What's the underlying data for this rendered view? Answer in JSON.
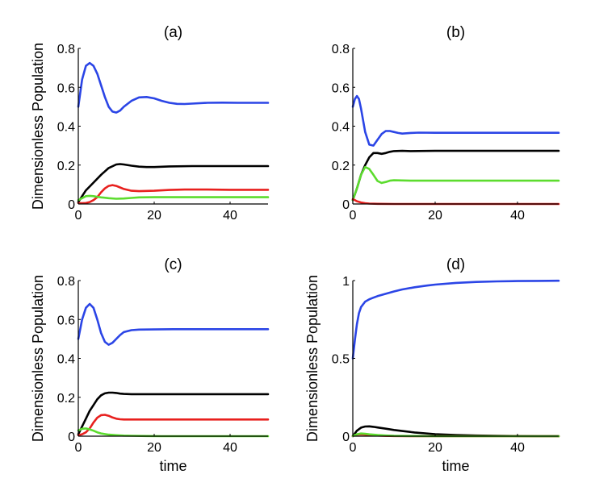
{
  "chart_data": [
    {
      "id": "a",
      "type": "line",
      "title": "(a)",
      "xlabel": "",
      "ylabel": "Dimensionless Population",
      "xlim": [
        0,
        50
      ],
      "ylim": [
        0,
        0.8
      ],
      "xticks": [
        "0",
        "20",
        "40"
      ],
      "yticks": [
        "0",
        "0.2",
        "0.4",
        "0.6",
        "0.8"
      ],
      "series": [
        {
          "name": "blue",
          "color": "#2b45e6",
          "x": [
            0,
            1,
            2,
            3,
            4,
            5,
            6,
            7,
            8,
            9,
            10,
            11,
            12,
            14,
            16,
            18,
            20,
            22,
            24,
            26,
            28,
            30,
            34,
            38,
            42,
            46,
            50
          ],
          "values": [
            0.5,
            0.64,
            0.71,
            0.725,
            0.71,
            0.67,
            0.61,
            0.55,
            0.5,
            0.475,
            0.47,
            0.48,
            0.5,
            0.53,
            0.548,
            0.55,
            0.543,
            0.53,
            0.52,
            0.515,
            0.514,
            0.516,
            0.52,
            0.521,
            0.52,
            0.52,
            0.52
          ]
        },
        {
          "name": "black",
          "color": "#000000",
          "x": [
            0,
            1,
            2,
            4,
            6,
            8,
            10,
            11,
            12,
            14,
            16,
            18,
            20,
            24,
            30,
            40,
            50
          ],
          "values": [
            0.01,
            0.04,
            0.07,
            0.11,
            0.15,
            0.185,
            0.203,
            0.205,
            0.203,
            0.197,
            0.192,
            0.19,
            0.19,
            0.193,
            0.195,
            0.195,
            0.195
          ]
        },
        {
          "name": "red",
          "color": "#e8201e",
          "x": [
            0,
            1,
            2,
            3,
            4,
            5,
            6,
            7,
            8,
            9,
            10,
            11,
            12,
            14,
            16,
            20,
            24,
            28,
            34,
            40,
            50
          ],
          "values": [
            0.005,
            0.004,
            0.005,
            0.01,
            0.02,
            0.035,
            0.06,
            0.08,
            0.093,
            0.097,
            0.093,
            0.085,
            0.077,
            0.068,
            0.066,
            0.068,
            0.072,
            0.074,
            0.074,
            0.073,
            0.073
          ]
        },
        {
          "name": "green",
          "color": "#5cdc2e",
          "x": [
            0,
            1,
            2,
            3,
            4,
            5,
            6,
            8,
            10,
            12,
            14,
            16,
            20,
            30,
            40,
            50
          ],
          "values": [
            0.02,
            0.03,
            0.04,
            0.042,
            0.04,
            0.037,
            0.034,
            0.03,
            0.027,
            0.028,
            0.031,
            0.034,
            0.035,
            0.035,
            0.035,
            0.035
          ]
        }
      ]
    },
    {
      "id": "b",
      "type": "line",
      "title": "(b)",
      "xlabel": "",
      "ylabel": "",
      "xlim": [
        0,
        50
      ],
      "ylim": [
        0,
        0.8
      ],
      "xticks": [
        "0",
        "20",
        "40"
      ],
      "yticks": [
        "0",
        "0.2",
        "0.4",
        "0.6",
        "0.8"
      ],
      "series": [
        {
          "name": "blue",
          "color": "#2b45e6",
          "x": [
            0,
            0.5,
            1,
            1.5,
            2,
            3,
            4,
            5,
            6,
            7,
            8,
            9,
            10,
            11,
            12,
            14,
            16,
            20,
            30,
            40,
            50
          ],
          "values": [
            0.5,
            0.54,
            0.555,
            0.54,
            0.49,
            0.37,
            0.305,
            0.3,
            0.33,
            0.36,
            0.375,
            0.375,
            0.37,
            0.365,
            0.362,
            0.365,
            0.367,
            0.366,
            0.366,
            0.366,
            0.366
          ]
        },
        {
          "name": "black",
          "color": "#000000",
          "x": [
            0,
            1,
            2,
            3,
            4,
            5,
            6,
            7,
            8,
            9,
            10,
            12,
            14,
            20,
            30,
            40,
            50
          ],
          "values": [
            0.02,
            0.08,
            0.15,
            0.2,
            0.24,
            0.262,
            0.262,
            0.258,
            0.262,
            0.268,
            0.272,
            0.273,
            0.272,
            0.273,
            0.273,
            0.273,
            0.273
          ]
        },
        {
          "name": "green",
          "color": "#5cdc2e",
          "x": [
            0,
            1,
            2,
            3,
            4,
            5,
            6,
            7,
            8,
            9,
            10,
            12,
            14,
            20,
            30,
            40,
            50
          ],
          "values": [
            0.02,
            0.08,
            0.15,
            0.19,
            0.18,
            0.15,
            0.118,
            0.108,
            0.113,
            0.12,
            0.122,
            0.121,
            0.12,
            0.12,
            0.12,
            0.12,
            0.12
          ]
        },
        {
          "name": "red",
          "color": "#e8201e",
          "x": [
            0,
            0.5,
            1,
            2,
            3,
            4,
            6,
            10,
            20,
            50
          ],
          "values": [
            0.025,
            0.02,
            0.014,
            0.008,
            0.004,
            0.002,
            0.001,
            0.0,
            0.0,
            0.0
          ]
        }
      ]
    },
    {
      "id": "c",
      "type": "line",
      "title": "(c)",
      "xlabel": "time",
      "ylabel": "Dimensionless Population",
      "xlim": [
        0,
        50
      ],
      "ylim": [
        0,
        0.8
      ],
      "xticks": [
        "0",
        "20",
        "40"
      ],
      "yticks": [
        "0",
        "0.2",
        "0.4",
        "0.6",
        "0.8"
      ],
      "series": [
        {
          "name": "blue",
          "color": "#2b45e6",
          "x": [
            0,
            1,
            2,
            3,
            4,
            5,
            6,
            7,
            8,
            9,
            10,
            11,
            12,
            14,
            16,
            20,
            25,
            30,
            40,
            50
          ],
          "values": [
            0.5,
            0.6,
            0.66,
            0.68,
            0.66,
            0.6,
            0.53,
            0.485,
            0.47,
            0.48,
            0.5,
            0.52,
            0.535,
            0.545,
            0.548,
            0.549,
            0.55,
            0.55,
            0.55,
            0.55
          ]
        },
        {
          "name": "black",
          "color": "#000000",
          "x": [
            0,
            1,
            2,
            3,
            4,
            5,
            6,
            7,
            8,
            9,
            10,
            11,
            12,
            14,
            16,
            20,
            30,
            40,
            50
          ],
          "values": [
            0.01,
            0.05,
            0.09,
            0.13,
            0.16,
            0.19,
            0.21,
            0.22,
            0.224,
            0.224,
            0.222,
            0.219,
            0.217,
            0.216,
            0.216,
            0.216,
            0.216,
            0.216,
            0.216
          ]
        },
        {
          "name": "red",
          "color": "#e8201e",
          "x": [
            0,
            1,
            2,
            3,
            4,
            5,
            6,
            7,
            8,
            9,
            10,
            11,
            12,
            14,
            16,
            20,
            30,
            40,
            50
          ],
          "values": [
            0.005,
            0.01,
            0.02,
            0.04,
            0.07,
            0.095,
            0.108,
            0.11,
            0.105,
            0.096,
            0.09,
            0.087,
            0.086,
            0.086,
            0.086,
            0.086,
            0.086,
            0.086,
            0.086
          ]
        },
        {
          "name": "green",
          "color": "#5cdc2e",
          "x": [
            0,
            1,
            2,
            3,
            4,
            5,
            6,
            8,
            10,
            12,
            14,
            18,
            22,
            30,
            40,
            50
          ],
          "values": [
            0.03,
            0.038,
            0.04,
            0.035,
            0.028,
            0.02,
            0.014,
            0.008,
            0.005,
            0.003,
            0.002,
            0.001,
            0.0,
            0.0,
            0.0,
            0.0
          ]
        }
      ]
    },
    {
      "id": "d",
      "type": "line",
      "title": "(d)",
      "xlabel": "time",
      "ylabel": "Dimensionless Population",
      "xlim": [
        0,
        50
      ],
      "ylim": [
        0,
        1
      ],
      "xticks": [
        "0",
        "20",
        "40"
      ],
      "yticks": [
        "0",
        "0.5",
        "1"
      ],
      "series": [
        {
          "name": "blue",
          "color": "#2b45e6",
          "x": [
            0,
            0.5,
            1,
            1.5,
            2,
            3,
            4,
            5,
            6,
            8,
            10,
            12,
            15,
            18,
            20,
            25,
            30,
            35,
            40,
            45,
            50
          ],
          "values": [
            0.5,
            0.62,
            0.72,
            0.79,
            0.83,
            0.865,
            0.88,
            0.89,
            0.9,
            0.915,
            0.93,
            0.943,
            0.957,
            0.968,
            0.974,
            0.985,
            0.991,
            0.995,
            0.997,
            0.998,
            0.999
          ]
        },
        {
          "name": "black",
          "color": "#000000",
          "x": [
            0,
            1,
            2,
            3,
            4,
            5,
            6,
            8,
            10,
            12,
            15,
            20,
            25,
            30,
            35,
            40,
            45,
            50
          ],
          "values": [
            0.0,
            0.035,
            0.055,
            0.062,
            0.063,
            0.06,
            0.056,
            0.048,
            0.04,
            0.033,
            0.024,
            0.013,
            0.007,
            0.004,
            0.002,
            0.001,
            0.0,
            0.0
          ]
        },
        {
          "name": "red",
          "color": "#e8201e",
          "x": [
            0,
            1,
            2,
            3,
            4,
            6,
            8,
            10,
            15,
            20,
            50
          ],
          "values": [
            0.002,
            0.01,
            0.012,
            0.01,
            0.007,
            0.004,
            0.002,
            0.001,
            0.0,
            0.0,
            0.0
          ]
        },
        {
          "name": "green",
          "color": "#5cdc2e",
          "x": [
            0,
            1,
            2,
            3,
            4,
            6,
            8,
            10,
            15,
            20,
            50
          ],
          "values": [
            0.002,
            0.012,
            0.017,
            0.015,
            0.012,
            0.007,
            0.004,
            0.002,
            0.001,
            0.0,
            0.0
          ]
        }
      ]
    }
  ]
}
